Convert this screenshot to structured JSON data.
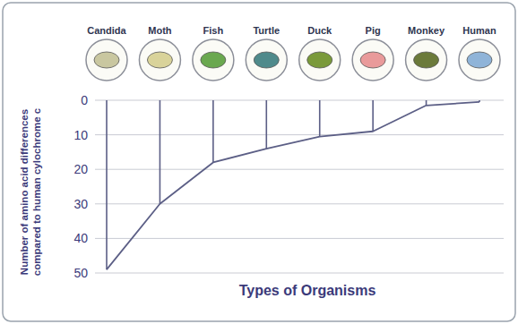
{
  "chart_data": {
    "type": "line",
    "categories": [
      "Candida",
      "Moth",
      "Fish",
      "Turtle",
      "Duck",
      "Pig",
      "Monkey",
      "Human"
    ],
    "values": [
      49,
      30,
      18,
      14,
      10.5,
      9,
      1.5,
      0.5
    ],
    "color": "#5c5f86",
    "xlabel": "Types of Organisms",
    "ylabel": [
      "Number of amino acid differences",
      "compared to human cylochrome c"
    ],
    "ylim": [
      50,
      0
    ],
    "yticks": [
      0,
      10,
      20,
      30,
      40,
      50
    ],
    "grid": true
  }
}
